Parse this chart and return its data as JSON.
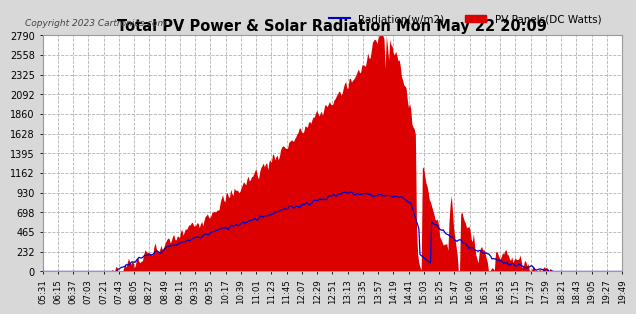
{
  "title": "Total PV Power & Solar Radiation Mon May 22 20:09",
  "copyright": "Copyright 2023 Cartronics.com",
  "legend_radiation": "Radiation(w/m2)",
  "legend_pv": "PV Panels(DC Watts)",
  "ymin": 0.0,
  "ymax": 2790.0,
  "yticks": [
    0.0,
    232.5,
    465.0,
    697.5,
    930.0,
    1162.5,
    1395.0,
    1627.5,
    1860.0,
    2092.5,
    2325.0,
    2557.5,
    2790.0
  ],
  "bg_color": "#d8d8d8",
  "plot_bg_color": "#ffffff",
  "pv_color": "#dd0000",
  "radiation_color": "#0000cc",
  "grid_color": "#aaaaaa",
  "title_color": "#000000",
  "time_labels": [
    "05:31",
    "06:15",
    "06:37",
    "07:03",
    "07:21",
    "07:43",
    "08:05",
    "08:27",
    "08:49",
    "09:11",
    "09:33",
    "09:55",
    "10:17",
    "10:39",
    "11:01",
    "11:23",
    "11:45",
    "12:07",
    "12:29",
    "12:51",
    "13:13",
    "13:35",
    "13:57",
    "14:19",
    "14:41",
    "15:03",
    "15:25",
    "15:47",
    "16:09",
    "16:31",
    "16:53",
    "17:15",
    "17:37",
    "17:59",
    "18:21",
    "18:43",
    "19:05",
    "19:27",
    "19:49"
  ]
}
